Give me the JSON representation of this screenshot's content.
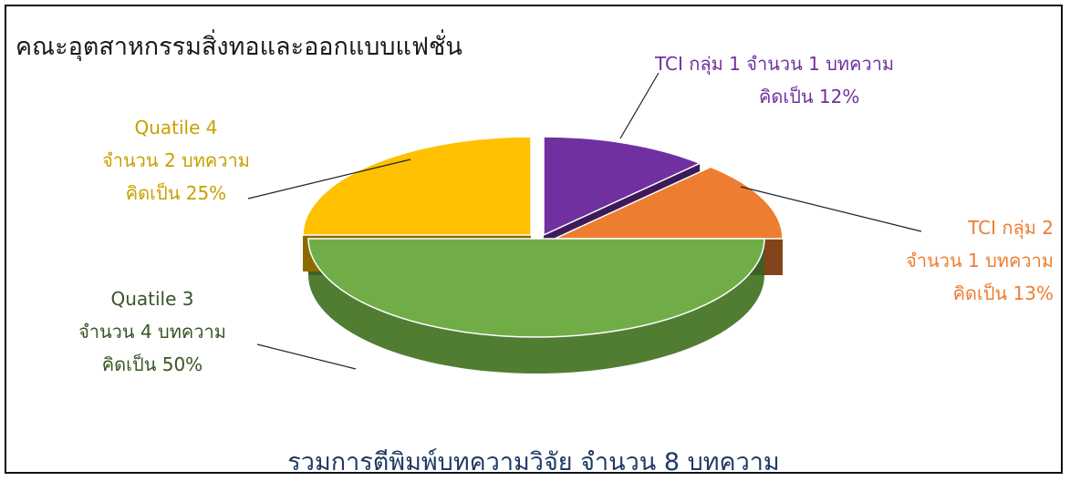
{
  "chart_data": {
    "type": "pie",
    "title": "คณะอุตสาหกรรมสิ่งทอและออกแบบแฟชั่น",
    "subtitle": "รวมการตีพิมพ์บทความวิจัย จำนวน 8 บทความ",
    "slices": [
      {
        "key": "tci1",
        "value": 12,
        "color": "#7030a0",
        "label": [
          "TCI กลุ่ม 1 จำนวน 1 บทความ",
          "คิดเป็น 12%"
        ]
      },
      {
        "key": "tci2",
        "value": 13,
        "color": "#ed7d31",
        "label": [
          "TCI กลุ่ม 2",
          "จำนวน 1 บทความ",
          "คิดเป็น 13%"
        ]
      },
      {
        "key": "q3",
        "value": 50,
        "color": "#70ad47",
        "label": [
          "Quatile 3",
          "จำนวน 4 บทความ",
          "คิดเป็น 50%"
        ]
      },
      {
        "key": "q4",
        "value": 25,
        "color": "#ffc000",
        "label": [
          "Quatile 4",
          "จำนวน 2 บทความ",
          "คิดเป็น 25%"
        ]
      }
    ]
  }
}
